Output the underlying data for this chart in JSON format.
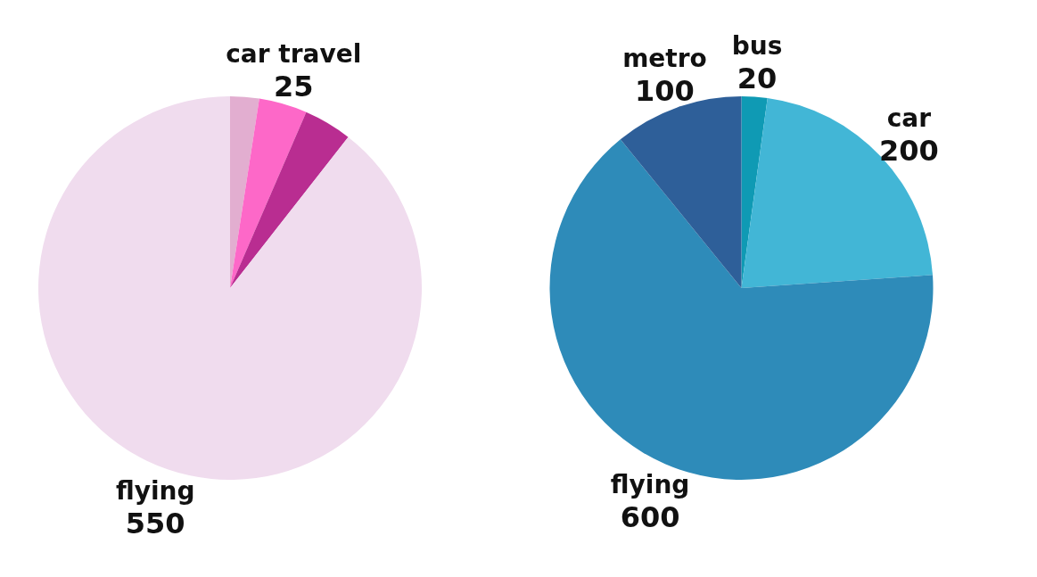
{
  "chart_data": [
    {
      "type": "pie",
      "categories": [
        null,
        "car travel",
        null,
        "flying"
      ],
      "values": [
        15,
        25,
        25,
        550
      ],
      "colors": [
        "#e2aed0",
        "#fd68c8",
        "#b92d91",
        "#f0dcee"
      ],
      "value_labels": [
        null,
        "25",
        null,
        "550"
      ]
    },
    {
      "type": "pie",
      "categories": [
        "bus",
        "car",
        "flying",
        "metro"
      ],
      "values": [
        20,
        200,
        600,
        100
      ],
      "colors": [
        "#0f9ab4",
        "#42b6d6",
        "#2e8bb9",
        "#2e5f99"
      ],
      "data_labels": true
    }
  ]
}
